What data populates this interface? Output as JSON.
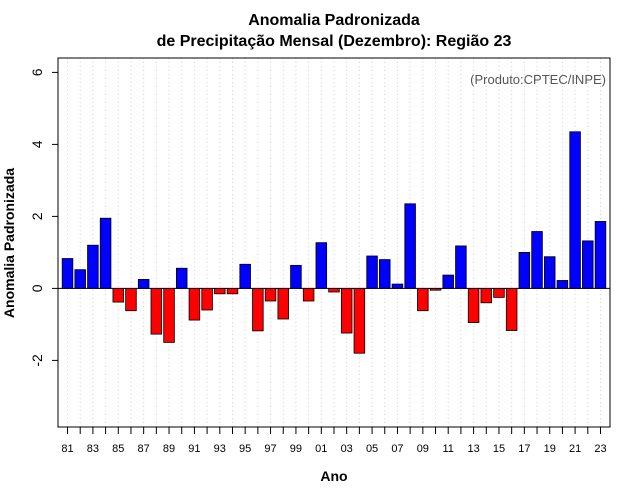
{
  "chart_data": {
    "type": "bar",
    "title": "Anomalia Padronizada",
    "subtitle": "de Precipitação Mensal (Dezembro): Região 23",
    "xlabel": "Ano",
    "ylabel": "Anomalia Padronizada",
    "annotation": "(Produto:CPTEC/INPE)",
    "ylim": [
      -3.85,
      6.4
    ],
    "yticks": [
      -2,
      0,
      2,
      4,
      6
    ],
    "grid": "vertical dotted",
    "positive_color": "#0000ff",
    "negative_color": "#ff0000",
    "categories": [
      "81",
      "82",
      "83",
      "84",
      "85",
      "86",
      "87",
      "88",
      "89",
      "90",
      "91",
      "92",
      "93",
      "94",
      "95",
      "96",
      "97",
      "98",
      "99",
      "00",
      "01",
      "02",
      "03",
      "04",
      "05",
      "06",
      "07",
      "08",
      "09",
      "10",
      "11",
      "12",
      "13",
      "14",
      "15",
      "16",
      "17",
      "18",
      "19",
      "20",
      "21",
      "22",
      "23"
    ],
    "tick_labels": [
      "81",
      "83",
      "85",
      "87",
      "89",
      "91",
      "93",
      "95",
      "97",
      "99",
      "01",
      "03",
      "05",
      "07",
      "09",
      "11",
      "13",
      "15",
      "17",
      "19",
      "21",
      "23"
    ],
    "values": [
      0.83,
      0.52,
      1.2,
      1.95,
      -0.38,
      -0.62,
      0.25,
      -1.27,
      -1.5,
      0.56,
      -0.88,
      -0.6,
      -0.15,
      -0.15,
      0.67,
      -1.18,
      -0.35,
      -0.85,
      0.64,
      -0.35,
      1.27,
      -0.1,
      -1.24,
      -1.8,
      0.9,
      0.8,
      0.12,
      2.35,
      -0.62,
      -0.05,
      0.37,
      1.18,
      -0.95,
      -0.4,
      -0.25,
      -1.17,
      1.0,
      1.58,
      0.88,
      0.22,
      4.35,
      1.32,
      1.86
    ]
  }
}
